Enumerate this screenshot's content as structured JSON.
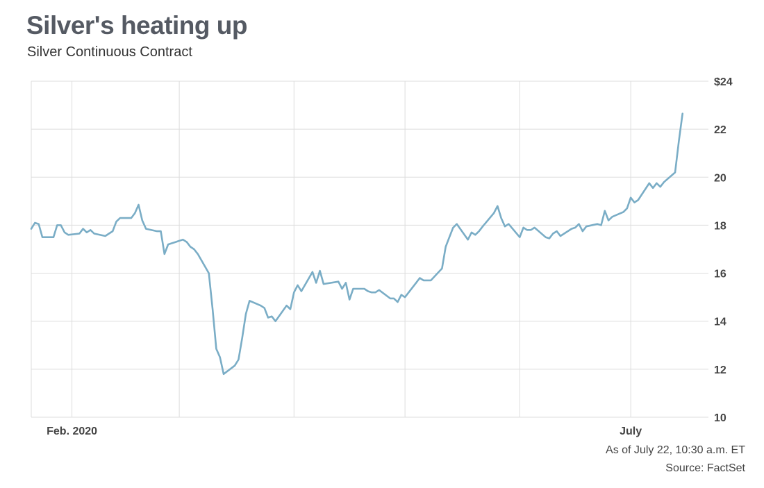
{
  "title": "Silver's heating up",
  "subtitle": "Silver Continuous Contract",
  "footer": {
    "as_of": "As of July 22, 10:30 a.m. ET",
    "source": "Source: FactSet"
  },
  "colors": {
    "line": "#7aadc6",
    "grid": "#dddddd",
    "text": "#444444"
  },
  "chart_data": {
    "type": "line",
    "title": "Silver's heating up",
    "subtitle": "Silver Continuous Contract",
    "y_axis_side": "right",
    "ylim": [
      10,
      24
    ],
    "yticks": [
      10,
      12,
      14,
      16,
      18,
      20,
      22,
      24
    ],
    "ytick_labels": [
      "10",
      "12",
      "14",
      "16",
      "18",
      "20",
      "22",
      "$24"
    ],
    "xlim": [
      "2020-01-21",
      "2020-07-22"
    ],
    "xticks": [
      {
        "date": "2020-02-01",
        "label": "Feb. 2020"
      },
      {
        "date": "2020-03-01",
        "label": ""
      },
      {
        "date": "2020-04-01",
        "label": ""
      },
      {
        "date": "2020-05-01",
        "label": ""
      },
      {
        "date": "2020-06-01",
        "label": ""
      },
      {
        "date": "2020-07-01",
        "label": "July"
      }
    ],
    "grid": true,
    "series": [
      {
        "values": [
          [
            "2020-01-21",
            17.85
          ],
          [
            "2020-01-22",
            18.1
          ],
          [
            "2020-01-23",
            18.05
          ],
          [
            "2020-01-24",
            17.5
          ],
          [
            "2020-01-27",
            17.5
          ],
          [
            "2020-01-28",
            18.0
          ],
          [
            "2020-01-29",
            18.0
          ],
          [
            "2020-01-30",
            17.7
          ],
          [
            "2020-01-31",
            17.6
          ],
          [
            "2020-02-03",
            17.65
          ],
          [
            "2020-02-04",
            17.85
          ],
          [
            "2020-02-05",
            17.7
          ],
          [
            "2020-02-06",
            17.8
          ],
          [
            "2020-02-07",
            17.65
          ],
          [
            "2020-02-10",
            17.55
          ],
          [
            "2020-02-11",
            17.65
          ],
          [
            "2020-02-12",
            17.75
          ],
          [
            "2020-02-13",
            18.15
          ],
          [
            "2020-02-14",
            18.3
          ],
          [
            "2020-02-17",
            18.3
          ],
          [
            "2020-02-18",
            18.5
          ],
          [
            "2020-02-19",
            18.85
          ],
          [
            "2020-02-20",
            18.2
          ],
          [
            "2020-02-21",
            17.85
          ],
          [
            "2020-02-24",
            17.75
          ],
          [
            "2020-02-25",
            17.75
          ],
          [
            "2020-02-26",
            16.8
          ],
          [
            "2020-02-27",
            17.2
          ],
          [
            "2020-02-28",
            17.25
          ],
          [
            "2020-03-02",
            17.4
          ],
          [
            "2020-03-03",
            17.3
          ],
          [
            "2020-03-04",
            17.1
          ],
          [
            "2020-03-05",
            17.0
          ],
          [
            "2020-03-06",
            16.8
          ],
          [
            "2020-03-09",
            16.0
          ],
          [
            "2020-03-10",
            14.5
          ],
          [
            "2020-03-11",
            12.85
          ],
          [
            "2020-03-12",
            12.5
          ],
          [
            "2020-03-13",
            11.8
          ],
          [
            "2020-03-16",
            12.15
          ],
          [
            "2020-03-17",
            12.4
          ],
          [
            "2020-03-18",
            13.3
          ],
          [
            "2020-03-19",
            14.3
          ],
          [
            "2020-03-20",
            14.85
          ],
          [
            "2020-03-23",
            14.65
          ],
          [
            "2020-03-24",
            14.55
          ],
          [
            "2020-03-25",
            14.15
          ],
          [
            "2020-03-26",
            14.2
          ],
          [
            "2020-03-27",
            14.0
          ],
          [
            "2020-03-30",
            14.65
          ],
          [
            "2020-03-31",
            14.5
          ],
          [
            "2020-04-01",
            15.2
          ],
          [
            "2020-04-02",
            15.5
          ],
          [
            "2020-04-03",
            15.25
          ],
          [
            "2020-04-06",
            16.05
          ],
          [
            "2020-04-07",
            15.6
          ],
          [
            "2020-04-08",
            16.1
          ],
          [
            "2020-04-09",
            15.55
          ],
          [
            "2020-04-13",
            15.65
          ],
          [
            "2020-04-14",
            15.35
          ],
          [
            "2020-04-15",
            15.6
          ],
          [
            "2020-04-16",
            14.9
          ],
          [
            "2020-04-17",
            15.35
          ],
          [
            "2020-04-20",
            15.35
          ],
          [
            "2020-04-21",
            15.25
          ],
          [
            "2020-04-22",
            15.2
          ],
          [
            "2020-04-23",
            15.2
          ],
          [
            "2020-04-24",
            15.3
          ],
          [
            "2020-04-27",
            14.95
          ],
          [
            "2020-04-28",
            14.95
          ],
          [
            "2020-04-29",
            14.8
          ],
          [
            "2020-04-30",
            15.1
          ],
          [
            "2020-05-01",
            15.0
          ],
          [
            "2020-05-04",
            15.6
          ],
          [
            "2020-05-05",
            15.8
          ],
          [
            "2020-05-06",
            15.7
          ],
          [
            "2020-05-07",
            15.7
          ],
          [
            "2020-05-08",
            15.7
          ],
          [
            "2020-05-11",
            16.2
          ],
          [
            "2020-05-12",
            17.1
          ],
          [
            "2020-05-13",
            17.5
          ],
          [
            "2020-05-14",
            17.9
          ],
          [
            "2020-05-15",
            18.05
          ],
          [
            "2020-05-18",
            17.4
          ],
          [
            "2020-05-19",
            17.7
          ],
          [
            "2020-05-20",
            17.6
          ],
          [
            "2020-05-21",
            17.75
          ],
          [
            "2020-05-22",
            17.95
          ],
          [
            "2020-05-25",
            18.5
          ],
          [
            "2020-05-26",
            18.8
          ],
          [
            "2020-05-27",
            18.3
          ],
          [
            "2020-05-28",
            17.95
          ],
          [
            "2020-05-29",
            18.05
          ],
          [
            "2020-06-01",
            17.5
          ],
          [
            "2020-06-02",
            17.9
          ],
          [
            "2020-06-03",
            17.8
          ],
          [
            "2020-06-04",
            17.8
          ],
          [
            "2020-06-05",
            17.9
          ],
          [
            "2020-06-08",
            17.5
          ],
          [
            "2020-06-09",
            17.45
          ],
          [
            "2020-06-10",
            17.65
          ],
          [
            "2020-06-11",
            17.75
          ],
          [
            "2020-06-12",
            17.55
          ],
          [
            "2020-06-15",
            17.85
          ],
          [
            "2020-06-16",
            17.9
          ],
          [
            "2020-06-17",
            18.05
          ],
          [
            "2020-06-18",
            17.75
          ],
          [
            "2020-06-19",
            17.95
          ],
          [
            "2020-06-22",
            18.05
          ],
          [
            "2020-06-23",
            18.0
          ],
          [
            "2020-06-24",
            18.6
          ],
          [
            "2020-06-25",
            18.2
          ],
          [
            "2020-06-26",
            18.35
          ],
          [
            "2020-06-29",
            18.55
          ],
          [
            "2020-06-30",
            18.7
          ],
          [
            "2020-07-01",
            19.15
          ],
          [
            "2020-07-02",
            18.95
          ],
          [
            "2020-07-03",
            19.05
          ],
          [
            "2020-07-06",
            19.75
          ],
          [
            "2020-07-07",
            19.55
          ],
          [
            "2020-07-08",
            19.75
          ],
          [
            "2020-07-09",
            19.6
          ],
          [
            "2020-07-10",
            19.8
          ],
          [
            "2020-07-13",
            20.2
          ],
          [
            "2020-07-14",
            21.5
          ],
          [
            "2020-07-15",
            22.65
          ]
        ]
      }
    ]
  }
}
